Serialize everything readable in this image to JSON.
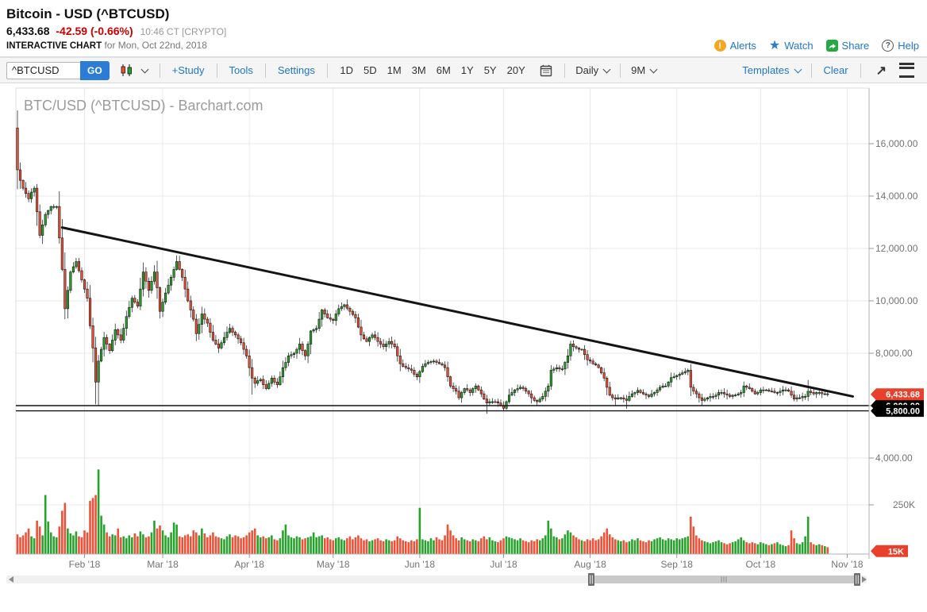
{
  "header": {
    "title": "Bitcoin - USD (^BTCUSD)",
    "price": "6,433.68",
    "change": "-42.59 (-0.66%)",
    "time": "10:46 CT [CRYPTO]",
    "subtitle_bold": "INTERACTIVE CHART",
    "subtitle_rest": " for Mon, Oct 22nd, 2018",
    "links": [
      {
        "label": "Alerts",
        "icon": "alert-icon"
      },
      {
        "label": "Watch",
        "icon": "star-icon"
      },
      {
        "label": "Share",
        "icon": "share-icon"
      },
      {
        "label": "Help",
        "icon": "help-icon"
      }
    ]
  },
  "toolbar": {
    "symbol_value": "^BTCUSD",
    "go_label": "GO",
    "study_label": "+Study",
    "tools_label": "Tools",
    "settings_label": "Settings",
    "ranges": [
      "1D",
      "5D",
      "1M",
      "3M",
      "6M",
      "1Y",
      "5Y",
      "20Y"
    ],
    "frequency_label": "Daily",
    "period_label": "9M",
    "templates_label": "Templates",
    "clear_label": "Clear"
  },
  "chart_data": {
    "type": "candlestick",
    "watermark": "BTC/USD (^BTCUSD) - Barchart.com",
    "y_axis": {
      "values": [
        16000,
        14000,
        12000,
        10000,
        8000,
        6000,
        4000
      ],
      "labels": [
        "16,000.00",
        "14,000.00",
        "12,000.00",
        "10,000.00",
        "8,000.00",
        "6,000.00",
        "4,000.00"
      ],
      "range": [
        3400,
        17800
      ]
    },
    "volume_axis": {
      "tick_value_k": 250,
      "tick_label": "250K",
      "last_volume_badge": "15K"
    },
    "x_axis": {
      "ticks": [
        {
          "label": "Feb '18",
          "day": 24
        },
        {
          "label": "Mar '18",
          "day": 52
        },
        {
          "label": "Apr '18",
          "day": 83
        },
        {
          "label": "May '18",
          "day": 113
        },
        {
          "label": "Jun '18",
          "day": 144
        },
        {
          "label": "Jul '18",
          "day": 174
        },
        {
          "label": "Aug '18",
          "day": 205
        },
        {
          "label": "Sep '18",
          "day": 236
        },
        {
          "label": "Oct '18",
          "day": 266
        },
        {
          "label": "Nov '18",
          "day": 297
        }
      ]
    },
    "last_price_badge": "6,433.68",
    "support_lines": [
      {
        "price": 6000,
        "badge": "6,000.00"
      },
      {
        "price": 5800,
        "badge": "5,800.00"
      }
    ],
    "trendline": {
      "day1": 16,
      "price1": 12800,
      "day2": 299,
      "price2": 6350
    },
    "first_open": 16600,
    "closes": [
      15000,
      14600,
      14300,
      14100,
      13900,
      14150,
      14300,
      13400,
      12500,
      12900,
      13300,
      13450,
      13600,
      13600,
      13600,
      12400,
      11200,
      9700,
      10400,
      11100,
      11300,
      11500,
      11150,
      10800,
      10450,
      10100,
      9050,
      8200,
      6900,
      7700,
      8150,
      8600,
      8350,
      8100,
      8500,
      8900,
      8700,
      8500,
      8950,
      9400,
      9750,
      10100,
      9950,
      9800,
      10450,
      11100,
      10750,
      10400,
      10750,
      11100,
      10500,
      9600,
      9950,
      10300,
      10600,
      10900,
      11200,
      11500,
      11200,
      10900,
      10450,
      10000,
      9650,
      9300,
      8750,
      9100,
      9500,
      9300,
      9150,
      8800,
      8500,
      8350,
      8200,
      8400,
      8600,
      8800,
      8950,
      8800,
      8700,
      8550,
      8400,
      8150,
      7900,
      7450,
      7050,
      6850,
      6950,
      7000,
      6800,
      6650,
      6850,
      7050,
      6900,
      6800,
      7100,
      7450,
      7650,
      7900,
      7950,
      8000,
      8150,
      8350,
      8100,
      7900,
      8350,
      8850,
      8900,
      8950,
      9300,
      9650,
      9500,
      9350,
      9300,
      9250,
      9500,
      9700,
      9780,
      9850,
      9720,
      9600,
      9480,
      9350,
      9000,
      8700,
      8550,
      8450,
      8600,
      8700,
      8600,
      8450,
      8350,
      8250,
      8350,
      8450,
      8350,
      8250,
      7900,
      7600,
      7500,
      7450,
      7400,
      7350,
      7200,
      7100,
      7300,
      7500,
      7600,
      7650,
      7680,
      7700,
      7650,
      7600,
      7550,
      7450,
      7100,
      6750,
      6650,
      6550,
      6300,
      6500,
      6650,
      6600,
      6500,
      6650,
      6750,
      6600,
      6450,
      6250,
      6100,
      6150,
      6150,
      6150,
      6100,
      6000,
      5900,
      6150,
      6400,
      6500,
      6600,
      6650,
      6700,
      6650,
      6550,
      6450,
      6300,
      6200,
      6150,
      6250,
      6350,
      6550,
      6750,
      7350,
      7400,
      7450,
      7400,
      7400,
      7650,
      7900,
      8350,
      8250,
      8200,
      8150,
      8150,
      7950,
      7750,
      7700,
      7600,
      7550,
      7450,
      7250,
      7050,
      6700,
      6400,
      6300,
      6250,
      6300,
      6300,
      6250,
      6200,
      6350,
      6450,
      6500,
      6580,
      6500,
      6450,
      6400,
      6350,
      6450,
      6500,
      6600,
      6700,
      6750,
      6750,
      6900,
      7070,
      7100,
      7150,
      7200,
      7250,
      7300,
      7350,
      6700,
      6550,
      6450,
      6300,
      6200,
      6250,
      6300,
      6350,
      6350,
      6400,
      6500,
      6500,
      6450,
      6400,
      6350,
      6400,
      6400,
      6450,
      6500,
      6750,
      6700,
      6650,
      6550,
      6450,
      6500,
      6600,
      6600,
      6600,
      6550,
      6550,
      6500,
      6500,
      6550,
      6600,
      6600,
      6550,
      6400,
      6250,
      6300,
      6300,
      6350,
      6350,
      6550,
      6500,
      6450,
      6500,
      6500,
      6450,
      6450,
      6430
    ],
    "volumes_k": [
      100,
      85,
      95,
      110,
      130,
      90,
      80,
      170,
      140,
      95,
      300,
      165,
      110,
      90,
      85,
      140,
      220,
      260,
      130,
      105,
      95,
      115,
      90,
      85,
      120,
      110,
      270,
      285,
      300,
      430,
      195,
      150,
      110,
      90,
      100,
      95,
      130,
      85,
      90,
      80,
      95,
      85,
      105,
      90,
      115,
      100,
      85,
      90,
      110,
      170,
      130,
      145,
      120,
      95,
      85,
      110,
      160,
      150,
      90,
      85,
      95,
      100,
      90,
      120,
      110,
      95,
      130,
      105,
      85,
      95,
      110,
      90,
      85,
      80,
      75,
      90,
      100,
      85,
      95,
      90,
      80,
      85,
      95,
      110,
      120,
      130,
      95,
      85,
      90,
      80,
      85,
      95,
      75,
      70,
      80,
      120,
      150,
      95,
      85,
      80,
      90,
      85,
      75,
      80,
      85,
      90,
      110,
      85,
      90,
      95,
      80,
      85,
      75,
      70,
      80,
      85,
      75,
      70,
      80,
      90,
      75,
      85,
      95,
      80,
      70,
      75,
      65,
      70,
      75,
      80,
      70,
      65,
      75,
      70,
      65,
      70,
      90,
      80,
      70,
      65,
      60,
      70,
      65,
      75,
      235,
      75,
      70,
      65,
      80,
      70,
      85,
      75,
      70,
      95,
      150,
      120,
      95,
      80,
      70,
      85,
      75,
      70,
      65,
      75,
      70,
      65,
      80,
      90,
      75,
      85,
      70,
      65,
      60,
      70,
      80,
      90,
      85,
      80,
      75,
      70,
      80,
      70,
      65,
      60,
      70,
      65,
      75,
      70,
      80,
      95,
      170,
      130,
      90,
      85,
      75,
      80,
      100,
      120,
      110,
      95,
      85,
      75,
      70,
      65,
      75,
      70,
      80,
      70,
      75,
      90,
      110,
      130,
      100,
      85,
      75,
      70,
      65,
      70,
      60,
      65,
      75,
      70,
      80,
      70,
      65,
      60,
      70,
      65,
      75,
      80,
      85,
      75,
      70,
      80,
      75,
      70,
      80,
      75,
      80,
      85,
      90,
      190,
      140,
      95,
      80,
      70,
      65,
      60,
      55,
      60,
      65,
      70,
      60,
      55,
      50,
      55,
      60,
      65,
      75,
      85,
      70,
      60,
      55,
      60,
      55,
      50,
      60,
      55,
      50,
      45,
      50,
      55,
      60,
      50,
      45,
      40,
      45,
      120,
      80,
      55,
      50,
      60,
      90,
      190,
      60,
      50,
      45,
      50,
      45,
      40,
      35
    ],
    "wick_overrides": {
      "0": {
        "hi": 17270
      },
      "17": {
        "lo": 9300
      },
      "28": {
        "lo": 6050
      },
      "29": {
        "lo": 5980
      },
      "84": {
        "lo": 6420
      },
      "168": {
        "lo": 5690
      },
      "174": {
        "lo": 5820
      },
      "214": {
        "lo": 5980
      },
      "218": {
        "lo": 5880
      },
      "240": {
        "hi": 7420
      },
      "283": {
        "hi": 6980
      }
    },
    "colors": {
      "up": "#27a22d",
      "down": "#ef5138",
      "outline": "#111111",
      "trend": "#141414",
      "grid": "#e8e8e8",
      "axis_line": "#b0b0b0",
      "axis_text": "#737373",
      "badge_red": "#e8402a",
      "badge_black": "#000000",
      "watermark": "#9b9b9b"
    }
  }
}
